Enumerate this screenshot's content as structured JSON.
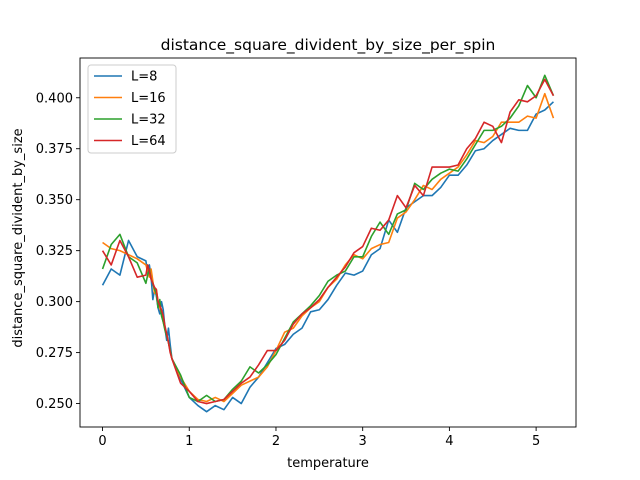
{
  "chart_data": {
    "type": "line",
    "title": "distance_square_divident_by_size_per_spin",
    "xlabel": "temperature",
    "ylabel": "distance_square_divident_by_size",
    "xlim": [
      -0.26,
      5.46
    ],
    "ylim": [
      0.2385,
      0.4195
    ],
    "xticks": [
      0,
      1,
      2,
      3,
      4,
      5
    ],
    "xtick_labels": [
      "0",
      "1",
      "2",
      "3",
      "4",
      "5"
    ],
    "yticks": [
      0.25,
      0.275,
      0.3,
      0.325,
      0.35,
      0.375,
      0.4
    ],
    "ytick_labels": [
      "0.250",
      "0.275",
      "0.300",
      "0.325",
      "0.350",
      "0.375",
      "0.400"
    ],
    "grid": false,
    "legend_position": "upper-left",
    "x": [
      0.0,
      0.1,
      0.2,
      0.3,
      0.4,
      0.5,
      0.52,
      0.54,
      0.56,
      0.58,
      0.6,
      0.62,
      0.64,
      0.66,
      0.68,
      0.7,
      0.72,
      0.74,
      0.76,
      0.78,
      0.8,
      0.9,
      1.0,
      1.1,
      1.2,
      1.3,
      1.4,
      1.5,
      1.6,
      1.7,
      1.8,
      1.9,
      2.0,
      2.1,
      2.2,
      2.3,
      2.4,
      2.5,
      2.6,
      2.7,
      2.8,
      2.9,
      3.0,
      3.1,
      3.2,
      3.3,
      3.4,
      3.5,
      3.6,
      3.7,
      3.8,
      3.9,
      4.0,
      4.1,
      4.2,
      4.3,
      4.4,
      4.5,
      4.6,
      4.7,
      4.8,
      4.9,
      5.0,
      5.1,
      5.2
    ],
    "series": [
      {
        "name": "L=8",
        "color": "#1f77b4",
        "values": [
          0.308,
          0.316,
          0.313,
          0.33,
          0.322,
          0.32,
          0.314,
          0.318,
          0.312,
          0.301,
          0.306,
          0.303,
          0.297,
          0.294,
          0.3,
          0.296,
          0.287,
          0.281,
          0.287,
          0.279,
          0.272,
          0.262,
          0.253,
          0.249,
          0.246,
          0.249,
          0.247,
          0.253,
          0.25,
          0.258,
          0.263,
          0.27,
          0.277,
          0.279,
          0.284,
          0.287,
          0.295,
          0.296,
          0.301,
          0.308,
          0.314,
          0.313,
          0.315,
          0.323,
          0.326,
          0.34,
          0.334,
          0.346,
          0.349,
          0.352,
          0.352,
          0.356,
          0.362,
          0.362,
          0.367,
          0.374,
          0.375,
          0.379,
          0.382,
          0.385,
          0.384,
          0.384,
          0.392,
          0.394,
          0.398
        ]
      },
      {
        "name": "L=16",
        "color": "#ff7f0e",
        "values": [
          0.329,
          0.326,
          0.325,
          0.323,
          0.321,
          0.318,
          0.315,
          0.312,
          0.316,
          0.31,
          0.304,
          0.306,
          0.3,
          0.297,
          0.294,
          0.29,
          0.287,
          0.284,
          0.28,
          0.276,
          0.272,
          0.263,
          0.256,
          0.252,
          0.251,
          0.253,
          0.251,
          0.255,
          0.259,
          0.261,
          0.263,
          0.268,
          0.276,
          0.285,
          0.287,
          0.293,
          0.297,
          0.3,
          0.307,
          0.311,
          0.318,
          0.323,
          0.321,
          0.326,
          0.328,
          0.329,
          0.341,
          0.344,
          0.35,
          0.357,
          0.355,
          0.36,
          0.363,
          0.366,
          0.372,
          0.379,
          0.378,
          0.381,
          0.388,
          0.388,
          0.388,
          0.391,
          0.39,
          0.402,
          0.39
        ]
      },
      {
        "name": "L=32",
        "color": "#2ca02c",
        "values": [
          0.316,
          0.328,
          0.333,
          0.322,
          0.319,
          0.309,
          0.313,
          0.316,
          0.311,
          0.309,
          0.306,
          0.304,
          0.297,
          0.301,
          0.293,
          0.29,
          0.286,
          0.283,
          0.28,
          0.276,
          0.272,
          0.264,
          0.253,
          0.251,
          0.254,
          0.251,
          0.252,
          0.257,
          0.261,
          0.268,
          0.265,
          0.269,
          0.274,
          0.282,
          0.29,
          0.294,
          0.298,
          0.303,
          0.31,
          0.313,
          0.315,
          0.322,
          0.322,
          0.332,
          0.339,
          0.333,
          0.343,
          0.345,
          0.358,
          0.355,
          0.36,
          0.363,
          0.365,
          0.364,
          0.37,
          0.377,
          0.384,
          0.384,
          0.386,
          0.39,
          0.396,
          0.406,
          0.4,
          0.411,
          0.401
        ]
      },
      {
        "name": "L=64",
        "color": "#d62728",
        "values": [
          0.325,
          0.318,
          0.33,
          0.322,
          0.312,
          0.313,
          0.318,
          0.315,
          0.311,
          0.309,
          0.307,
          0.306,
          0.3,
          0.298,
          0.296,
          0.293,
          0.288,
          0.284,
          0.28,
          0.275,
          0.272,
          0.26,
          0.256,
          0.251,
          0.25,
          0.251,
          0.252,
          0.256,
          0.26,
          0.263,
          0.269,
          0.276,
          0.276,
          0.281,
          0.289,
          0.294,
          0.297,
          0.301,
          0.307,
          0.312,
          0.317,
          0.324,
          0.327,
          0.336,
          0.335,
          0.34,
          0.352,
          0.346,
          0.357,
          0.352,
          0.366,
          0.366,
          0.366,
          0.367,
          0.375,
          0.38,
          0.388,
          0.386,
          0.378,
          0.393,
          0.399,
          0.398,
          0.401,
          0.409,
          0.401
        ]
      }
    ]
  }
}
